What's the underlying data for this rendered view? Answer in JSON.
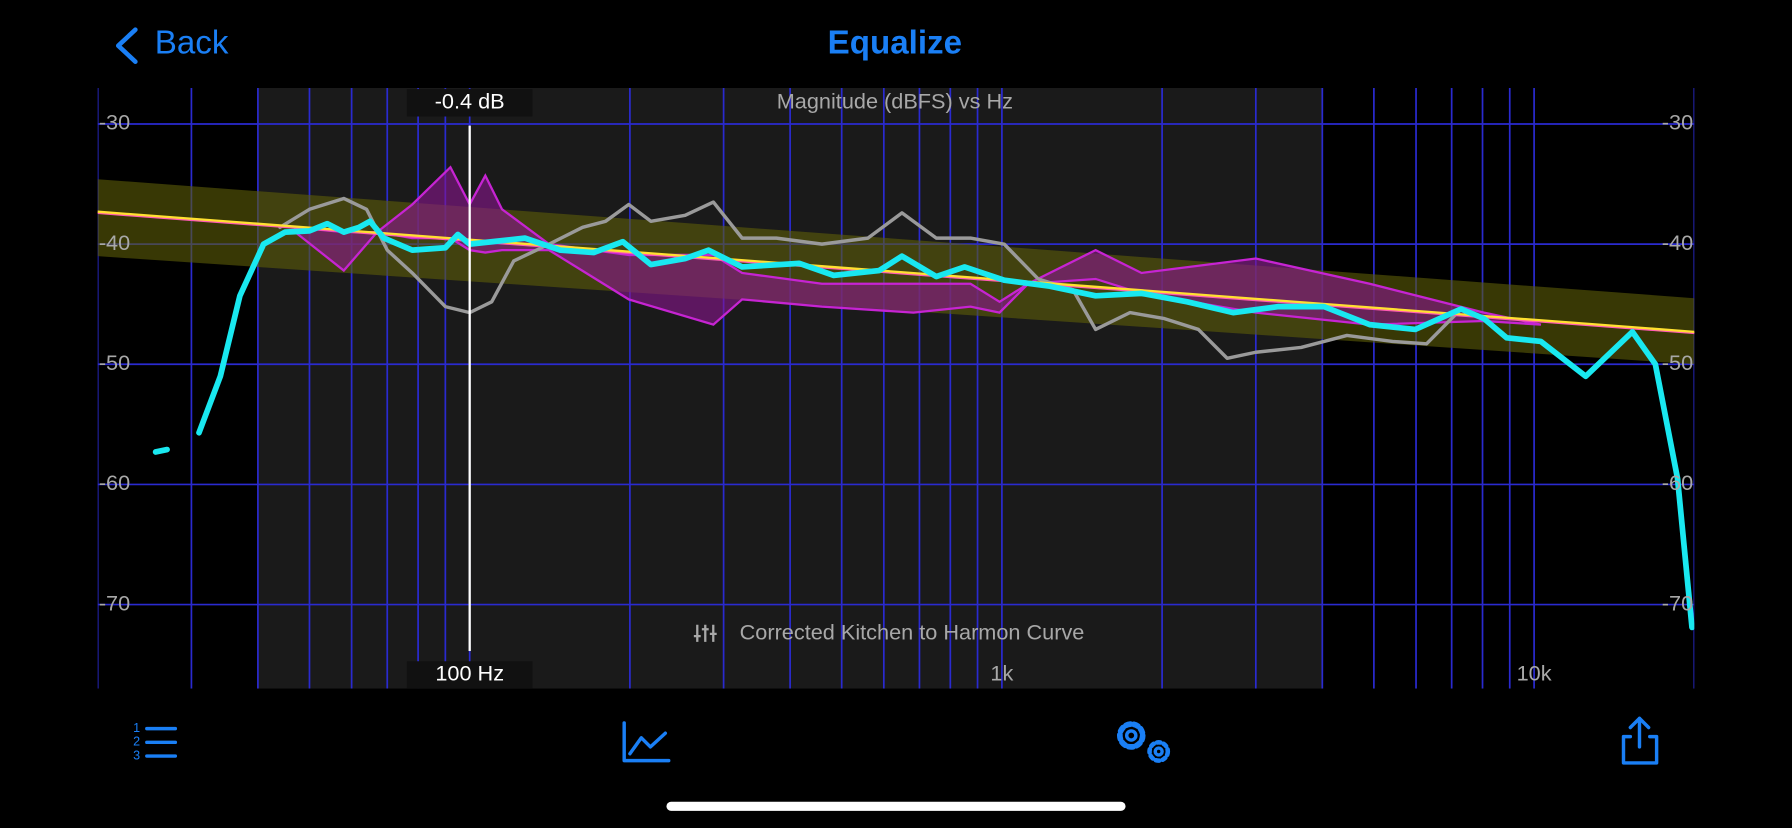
{
  "header": {
    "back": "Back",
    "title": "Equalize"
  },
  "chart_data": {
    "type": "line",
    "title": "Magnitude (dBFS) vs Hz",
    "subtitle": "Corrected Kitchen to Harmon Curve",
    "log_x": true,
    "grid": true,
    "xlim": [
      20,
      20000
    ],
    "ylim": [
      -77,
      -27
    ],
    "xticks": [
      {
        "value": 1000,
        "label": "1k"
      },
      {
        "value": 10000,
        "label": "10k"
      }
    ],
    "xgrid": [
      20,
      30,
      40,
      50,
      60,
      70,
      80,
      90,
      100,
      200,
      300,
      400,
      500,
      600,
      700,
      800,
      900,
      1000,
      2000,
      3000,
      4000,
      5000,
      6000,
      7000,
      8000,
      9000,
      10000,
      20000
    ],
    "yticks": [
      -30,
      -40,
      -50,
      -60,
      -70
    ],
    "highlight_range": [
      40,
      4000
    ],
    "cursor": {
      "x": 100,
      "label_x": "100 Hz",
      "label_y": "-0.4 dB"
    },
    "series": [
      {
        "kind": "band",
        "color": "#5e5e08",
        "x": [
          20,
          20000
        ],
        "high": [
          -34.6,
          -44.5
        ],
        "low": [
          -41.0,
          -50.0
        ]
      },
      {
        "kind": "band",
        "color": "#8a1690",
        "line_color": "#c624d2",
        "x": [
          47,
          58,
          67,
          78,
          92,
          100,
          107,
          115,
          141,
          199,
          287,
          325,
          459,
          682,
          873,
          990,
          1120,
          1500,
          1830,
          3000,
          4910,
          8050,
          10300
        ],
        "high": [
          -38.6,
          -39.0,
          -39.0,
          -36.7,
          -33.6,
          -36.7,
          -34.3,
          -37.1,
          -40.0,
          -40.9,
          -40.9,
          -42.4,
          -43.3,
          -43.3,
          -43.3,
          -44.8,
          -43.3,
          -40.5,
          -42.4,
          -41.2,
          -43.3,
          -45.7,
          -46.7
        ],
        "low": [
          -39.0,
          -42.2,
          -39.0,
          -39.5,
          -39.5,
          -40.5,
          -40.7,
          -40.5,
          -40.5,
          -44.6,
          -46.7,
          -44.6,
          -45.2,
          -45.7,
          -45.2,
          -45.7,
          -43.3,
          -42.9,
          -44.1,
          -45.7,
          -46.7,
          -46.4,
          -46.7
        ]
      },
      {
        "kind": "line",
        "color": "#9a9a9a",
        "width": 3,
        "x": [
          44,
          50,
          58,
          64,
          70,
          78,
          90,
          100,
          110,
          121,
          141,
          163,
          180,
          199,
          219,
          254,
          287,
          325,
          377,
          459,
          560,
          649,
          753,
          873,
          1010,
          1170,
          1360,
          1500,
          1740,
          2020,
          2340,
          2650,
          3000,
          3650,
          4450,
          5420,
          6280,
          7290,
          8050
        ],
        "values": [
          -38.6,
          -37.1,
          -36.2,
          -37.1,
          -40.5,
          -42.4,
          -45.2,
          -45.7,
          -44.8,
          -41.4,
          -40.0,
          -38.6,
          -38.1,
          -36.7,
          -38.1,
          -37.6,
          -36.5,
          -39.5,
          -39.5,
          -40.0,
          -39.5,
          -37.4,
          -39.5,
          -39.5,
          -40.0,
          -42.9,
          -43.8,
          -47.1,
          -45.7,
          -46.2,
          -47.1,
          -49.5,
          -49.0,
          -48.6,
          -47.6,
          -48.1,
          -48.3,
          -45.4,
          -46.2
        ]
      },
      {
        "kind": "line",
        "color": "#ff5ab4",
        "width": 2,
        "x": [
          20,
          20000
        ],
        "values": [
          -37.4,
          -47.4
        ]
      },
      {
        "kind": "line",
        "color": "#ffe030",
        "width": 2,
        "x": [
          20,
          20000
        ],
        "values": [
          -37.3,
          -47.3
        ]
      },
      {
        "kind": "line",
        "color": "#19e8f0",
        "width": 5,
        "x": [
          25.7,
          27,
          29,
          31,
          34,
          37,
          41,
          45,
          50,
          54,
          58,
          62,
          65,
          69,
          78,
          90,
          95,
          100,
          110,
          127,
          148,
          171,
          194,
          219,
          254,
          281,
          325,
          416,
          483,
          588,
          649,
          753,
          851,
          1010,
          1230,
          1500,
          1830,
          2230,
          2720,
          3310,
          4030,
          4910,
          5980,
          7290,
          8050,
          8880,
          10300,
          12500,
          15300,
          16900,
          18600,
          19800
        ],
        "values": [
          -57.3,
          -57.1,
          null,
          -55.7,
          -51.0,
          -44.3,
          -40.0,
          -39.0,
          -38.9,
          -38.3,
          -39.0,
          -38.6,
          -38.1,
          -39.5,
          -40.5,
          -40.3,
          -39.2,
          -40.0,
          -39.8,
          -39.5,
          -40.5,
          -40.7,
          -39.8,
          -41.7,
          -41.2,
          -40.5,
          -41.9,
          -41.6,
          -42.6,
          -42.2,
          -41.0,
          -42.7,
          -41.9,
          -43.0,
          -43.5,
          -44.3,
          -44.1,
          -44.8,
          -45.7,
          -45.2,
          -45.2,
          -46.7,
          -47.1,
          -45.4,
          -46.2,
          -47.8,
          -48.1,
          -51.0,
          -47.3,
          -50.0,
          -59.5,
          -71.9
        ]
      }
    ]
  }
}
